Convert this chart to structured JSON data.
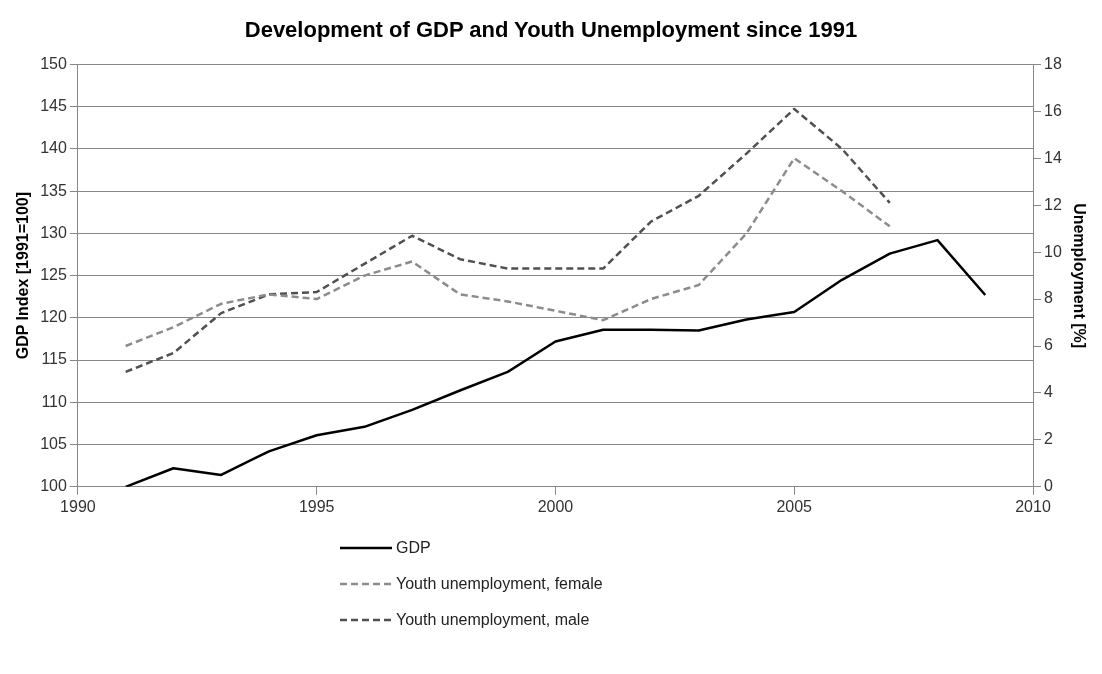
{
  "chart_data": {
    "type": "line",
    "title": "Development of GDP and Youth Unemployment since 1991",
    "ylabel": "GDP Index [1991=100]",
    "y2label": "Unemployment [%]",
    "x": [
      1991,
      1992,
      1993,
      1994,
      1995,
      1996,
      1997,
      1998,
      1999,
      2000,
      2001,
      2002,
      2003,
      2004,
      2005,
      2006,
      2007,
      2008,
      2009
    ],
    "xlim": [
      1990,
      2010
    ],
    "xticks": [
      1990,
      1995,
      2000,
      2005,
      2010
    ],
    "ylim": [
      100,
      150
    ],
    "yticks": [
      100,
      105,
      110,
      115,
      120,
      125,
      130,
      135,
      140,
      145,
      150
    ],
    "y2lim": [
      0,
      18
    ],
    "y2ticks": [
      0,
      2,
      4,
      6,
      8,
      10,
      12,
      14,
      16,
      18
    ],
    "grid": "y",
    "legend": "bottom",
    "marker": "none",
    "series": [
      {
        "name": "GDP",
        "color": "#000000",
        "line_style": "solid",
        "values": [
          100,
          102.2,
          101.4,
          104.2,
          106.1,
          107.1,
          109.1,
          111.4,
          113.6,
          117.2,
          118.6,
          118.6,
          118.5,
          119.8,
          120.7,
          124.5,
          127.6,
          129.2,
          122.7
        ]
      },
      {
        "name": "Youth unemployment, female",
        "color": "#8c8c8c",
        "line_style": "dashed",
        "axis": "y2",
        "values": [
          6.0,
          6.8,
          7.8,
          8.2,
          8.0,
          9.0,
          9.6,
          8.2,
          7.9,
          7.5,
          7.1,
          8.0,
          8.6,
          10.8,
          14.0,
          12.6,
          11.1,
          null,
          null
        ]
      },
      {
        "name": "Youth unemployment, male",
        "color": "#505050",
        "line_style": "dashed",
        "axis": "y2",
        "values": [
          4.9,
          5.7,
          7.4,
          8.2,
          8.3,
          9.5,
          10.7,
          9.7,
          9.3,
          9.3,
          9.3,
          11.3,
          12.4,
          14.2,
          16.1,
          14.4,
          12.1,
          null,
          null
        ]
      }
    ]
  }
}
